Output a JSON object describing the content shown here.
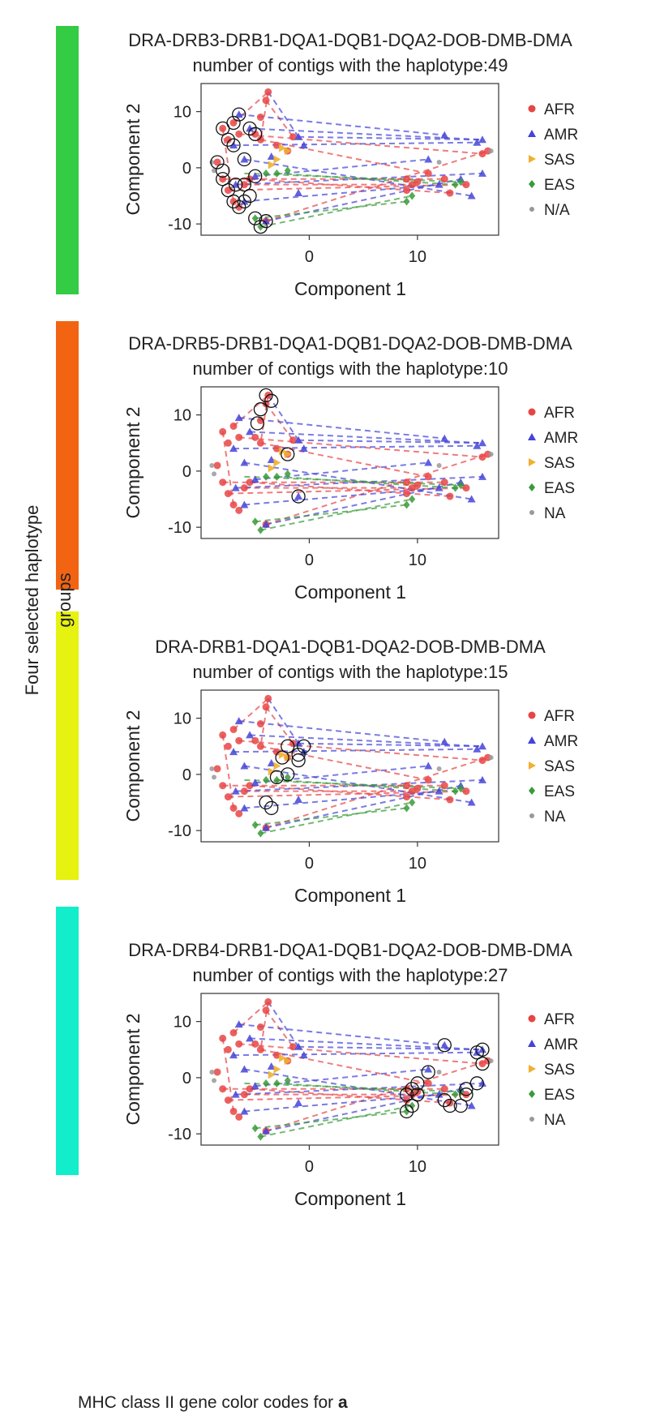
{
  "side_label": "Four selected haplotype groups",
  "footer": {
    "text": "MHC class II gene color codes for ",
    "bold": "a"
  },
  "group_colors": [
    "#33cc44",
    "#f26412",
    "#e6f20f",
    "#12eecc"
  ],
  "legend_colors": {
    "AFR": "#e84545",
    "AMR": "#4444d8",
    "SAS": "#f0b030",
    "EAS": "#3a9a3a",
    "OTHER": "#999999"
  },
  "chart_data": [
    {
      "type": "scatter",
      "title": "DRA-DRB3-DRB1-DQA1-DQB1-DQA2-DOB-DMB-DMA",
      "subtitle": "number of contigs with the haplotype:49",
      "xlabel": "Component 1",
      "ylabel": "Component 2",
      "xlim": [
        -10,
        17.5
      ],
      "ylim": [
        -12,
        15
      ],
      "xticks": [
        "0",
        "10"
      ],
      "yticks": [
        "10",
        "0",
        "-10"
      ],
      "legend": [
        "AFR",
        "AMR",
        "SAS",
        "EAS",
        "N/A"
      ],
      "highlight": "left-cluster"
    },
    {
      "type": "scatter",
      "title": "DRA-DRB5-DRB1-DQA1-DQB1-DQA2-DOB-DMB-DMA",
      "subtitle": "number of contigs with the haplotype:10",
      "xlabel": "Component 1",
      "ylabel": "Component 2",
      "xlim": [
        -10,
        17.5
      ],
      "ylim": [
        -12,
        15
      ],
      "xticks": [
        "0",
        "10"
      ],
      "yticks": [
        "10",
        "0",
        "-10"
      ],
      "legend": [
        "AFR",
        "AMR",
        "SAS",
        "EAS",
        "NA"
      ],
      "highlight": "top-cluster"
    },
    {
      "type": "scatter",
      "title": "DRA-DRB1-DQA1-DQB1-DQA2-DOB-DMB-DMA",
      "subtitle": "number of contigs with the haplotype:15",
      "xlabel": "Component 1",
      "ylabel": "Component 2",
      "xlim": [
        -10,
        17.5
      ],
      "ylim": [
        -12,
        15
      ],
      "xticks": [
        "0",
        "10"
      ],
      "yticks": [
        "10",
        "0",
        "-10"
      ],
      "legend": [
        "AFR",
        "AMR",
        "SAS",
        "EAS",
        "NA"
      ],
      "highlight": "middle-cluster"
    },
    {
      "type": "scatter",
      "title": "DRA-DRB4-DRB1-DQA1-DQB1-DQA2-DOB-DMB-DMA",
      "subtitle": "number of contigs with the haplotype:27",
      "xlabel": "Component 1",
      "ylabel": "Component 2",
      "xlim": [
        -10,
        17.5
      ],
      "ylim": [
        -12,
        15
      ],
      "xticks": [
        "0",
        "10"
      ],
      "yticks": [
        "10",
        "0",
        "-10"
      ],
      "legend": [
        "AFR",
        "AMR",
        "SAS",
        "EAS",
        "NA"
      ],
      "highlight": "right-cluster"
    }
  ],
  "points": {
    "AFR": [
      [
        -8,
        7
      ],
      [
        -7.5,
        5
      ],
      [
        -7,
        8
      ],
      [
        -6.5,
        6
      ],
      [
        -5,
        6
      ],
      [
        -4.5,
        9
      ],
      [
        -4,
        12
      ],
      [
        -3.8,
        13.5
      ],
      [
        -4.5,
        5
      ],
      [
        -8,
        -2
      ],
      [
        -7.5,
        -4
      ],
      [
        -7,
        -6
      ],
      [
        -6.5,
        -7
      ],
      [
        -6,
        -3
      ],
      [
        -5.5,
        -2
      ],
      [
        -4,
        -9.5
      ],
      [
        -8.5,
        1
      ],
      [
        -3,
        4
      ],
      [
        -2,
        3
      ],
      [
        -1.5,
        5.5
      ],
      [
        9,
        -2
      ],
      [
        9.5,
        -3
      ],
      [
        10,
        -2.5
      ],
      [
        12.5,
        -2
      ],
      [
        13,
        -4.5
      ],
      [
        14.5,
        -3
      ],
      [
        16,
        2.5
      ],
      [
        16.5,
        3
      ],
      [
        9,
        -4
      ],
      [
        11,
        -1
      ]
    ],
    "AMR": [
      [
        -6.5,
        9.5
      ],
      [
        -5.5,
        7
      ],
      [
        -7,
        4
      ],
      [
        -6,
        1.5
      ],
      [
        -5,
        -1.5
      ],
      [
        -6.8,
        -3
      ],
      [
        -6,
        -6
      ],
      [
        -4,
        -9.5
      ],
      [
        -1,
        5.5
      ],
      [
        -0.5,
        4
      ],
      [
        -1,
        -4.5
      ],
      [
        12.5,
        5.8
      ],
      [
        15.5,
        4.5
      ],
      [
        16,
        5
      ],
      [
        15,
        -5
      ],
      [
        14,
        -2
      ],
      [
        12,
        -3
      ],
      [
        16,
        -1
      ],
      [
        11,
        1.5
      ],
      [
        -3.5,
        2
      ]
    ],
    "SAS": [
      [
        -2.5,
        3.5
      ],
      [
        -2,
        3
      ],
      [
        -3,
        1.5
      ],
      [
        -3.5,
        0.5
      ]
    ],
    "EAS": [
      [
        -5,
        -9
      ],
      [
        -4.5,
        -10.5
      ],
      [
        -3,
        -1
      ],
      [
        -2,
        -0.5
      ],
      [
        9,
        -6
      ],
      [
        9.5,
        -5
      ],
      [
        13.5,
        -3
      ],
      [
        14,
        -2.5
      ],
      [
        -4,
        -1
      ]
    ],
    "OTHER": [
      [
        -9,
        1
      ],
      [
        -8.8,
        -0.5
      ],
      [
        12,
        1
      ],
      [
        16.8,
        3
      ]
    ]
  },
  "lines": [
    {
      "group": "AFR",
      "segs": [
        [
          [
            -7,
            8
          ],
          [
            -3.8,
            13.5
          ]
        ],
        [
          [
            -6.5,
            6
          ],
          [
            16,
            2.5
          ]
        ],
        [
          [
            -8,
            -2
          ],
          [
            12.5,
            -2
          ]
        ],
        [
          [
            -7.5,
            -4
          ],
          [
            14.5,
            -3
          ]
        ],
        [
          [
            -6,
            -3
          ],
          [
            9.5,
            -3
          ]
        ],
        [
          [
            -4,
            -9.5
          ],
          [
            16.5,
            3
          ]
        ],
        [
          [
            -5.5,
            -2
          ],
          [
            13,
            -4.5
          ]
        ],
        [
          [
            -4,
            12
          ],
          [
            -1.5,
            5.5
          ]
        ],
        [
          [
            -4.5,
            5
          ],
          [
            11,
            -1
          ]
        ],
        [
          [
            -3.8,
            13.5
          ],
          [
            -4.5,
            5
          ]
        ],
        [
          [
            -8,
            7
          ],
          [
            -7,
            -6
          ]
        ]
      ]
    },
    {
      "group": "AMR",
      "segs": [
        [
          [
            -6.5,
            9.5
          ],
          [
            12.5,
            5.8
          ]
        ],
        [
          [
            -5.5,
            7
          ],
          [
            16,
            5
          ]
        ],
        [
          [
            -7,
            4
          ],
          [
            15.5,
            4.5
          ]
        ],
        [
          [
            -6,
            1.5
          ],
          [
            15,
            -5
          ]
        ],
        [
          [
            -3.8,
            13.5
          ],
          [
            -1,
            5.5
          ]
        ],
        [
          [
            -4,
            -9.5
          ],
          [
            14,
            -2
          ]
        ],
        [
          [
            -6.8,
            -3
          ],
          [
            16,
            -1
          ]
        ],
        [
          [
            -6,
            -6
          ],
          [
            12,
            -3
          ]
        ],
        [
          [
            -5,
            -1.5
          ],
          [
            11,
            1.5
          ]
        ],
        [
          [
            -1,
            5.5
          ],
          [
            16,
            5
          ]
        ]
      ]
    },
    {
      "group": "EAS",
      "segs": [
        [
          [
            -5,
            -9
          ],
          [
            9,
            -6
          ]
        ],
        [
          [
            -4.5,
            -10.5
          ],
          [
            9.5,
            -5
          ]
        ],
        [
          [
            -3,
            -1
          ],
          [
            13.5,
            -3
          ]
        ],
        [
          [
            -6,
            -1
          ],
          [
            14,
            -2.5
          ]
        ]
      ]
    }
  ],
  "highlights": {
    "left-cluster": [
      [
        -8,
        7
      ],
      [
        -7.5,
        5
      ],
      [
        -7,
        8
      ],
      [
        -6.5,
        9.5
      ],
      [
        -5,
        6
      ],
      [
        -5.5,
        7
      ],
      [
        -7,
        4
      ],
      [
        -8.5,
        1
      ],
      [
        -8,
        -2
      ],
      [
        -7.5,
        -4
      ],
      [
        -7,
        -6
      ],
      [
        -6.5,
        -7
      ],
      [
        -6,
        -3
      ],
      [
        -6,
        1.5
      ],
      [
        -5,
        -1.5
      ],
      [
        -6,
        -6
      ],
      [
        -4,
        -9.5
      ],
      [
        -4.5,
        -10.5
      ],
      [
        -5,
        -9
      ],
      [
        -8,
        -0.5
      ],
      [
        -6.8,
        -3
      ],
      [
        -5.5,
        -5
      ]
    ],
    "top-cluster": [
      [
        -4,
        13.5
      ],
      [
        -3.5,
        12.5
      ],
      [
        -4.5,
        11
      ],
      [
        -4.8,
        8.5
      ],
      [
        -2,
        3
      ],
      [
        -1,
        -4.5
      ]
    ],
    "middle-cluster": [
      [
        -2,
        5
      ],
      [
        -0.5,
        5
      ],
      [
        -1,
        3.5
      ],
      [
        -1,
        2.5
      ],
      [
        -2.5,
        3
      ],
      [
        -2,
        0
      ],
      [
        -3,
        -0.5
      ],
      [
        -4,
        -5
      ],
      [
        -3.5,
        -6
      ]
    ],
    "right-cluster": [
      [
        12.5,
        5.8
      ],
      [
        15.5,
        4.5
      ],
      [
        16,
        5
      ],
      [
        15.5,
        -1
      ],
      [
        16,
        2.5
      ],
      [
        11,
        1
      ],
      [
        10,
        -1
      ],
      [
        9.5,
        -2
      ],
      [
        9,
        -3
      ],
      [
        10,
        -3
      ],
      [
        12.5,
        -4
      ],
      [
        13,
        -5
      ],
      [
        14.5,
        -2
      ],
      [
        14.5,
        -3
      ],
      [
        14,
        -5
      ],
      [
        9,
        -6
      ],
      [
        9.5,
        -5
      ]
    ]
  }
}
